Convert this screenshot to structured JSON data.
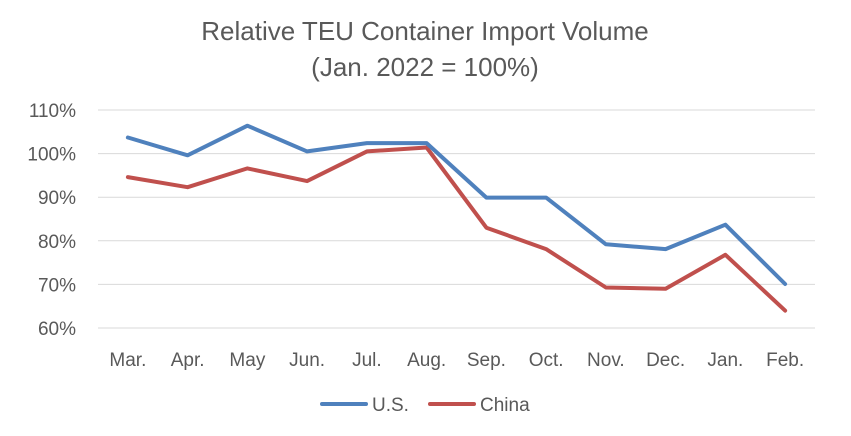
{
  "chart_data": {
    "type": "line",
    "title": "Relative TEU Container Import  Volume",
    "subtitle": "(Jan. 2022 = 100%)",
    "xlabel": "",
    "ylabel": "",
    "categories": [
      "Mar.",
      "Apr.",
      "May",
      "Jun.",
      "Jul.",
      "Aug.",
      "Sep.",
      "Oct.",
      "Nov.",
      "Dec.",
      "Jan.",
      "Feb."
    ],
    "ylim": [
      60,
      110
    ],
    "yticks": [
      60,
      70,
      80,
      90,
      100,
      110
    ],
    "ytick_labels": [
      "60%",
      "70%",
      "80%",
      "90%",
      "100%",
      "110%"
    ],
    "grid": true,
    "legend_position": "bottom",
    "series": [
      {
        "name": "U.S.",
        "color": "#4f81bd",
        "values": [
          103.7,
          99.6,
          106.4,
          100.5,
          102.4,
          102.4,
          89.9,
          89.9,
          79.2,
          78.1,
          83.7,
          70.1
        ]
      },
      {
        "name": "China",
        "color": "#c0504d",
        "values": [
          94.6,
          92.3,
          96.6,
          93.7,
          100.5,
          101.4,
          83.0,
          78.1,
          69.3,
          69.0,
          76.8,
          64.0
        ]
      }
    ]
  }
}
